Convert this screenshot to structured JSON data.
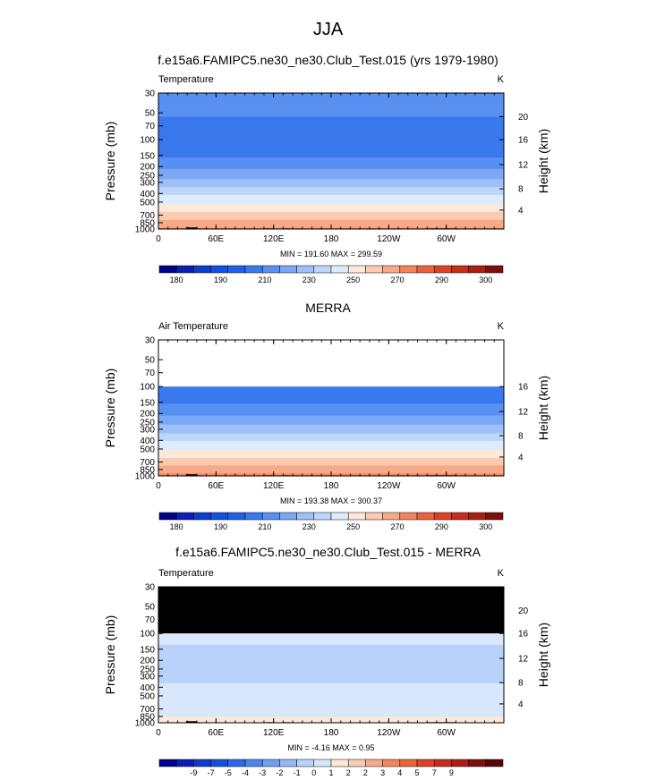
{
  "page": {
    "title": "JJA"
  },
  "chart_data": [
    {
      "type": "heatmap",
      "title": "f.e15a6.FAMIPC5.ne30_ne30.Club_Test.015 (yrs 1979-1980)",
      "left_string": "Temperature",
      "right_string": "K",
      "ylabel": "Pressure (mb)",
      "ylabel_right": "Height (km)",
      "x_ticks": [
        "0",
        "60E",
        "120E",
        "180",
        "120W",
        "60W"
      ],
      "y_ticks": [
        "30",
        "50",
        "70",
        "100",
        "150",
        "200",
        "250",
        "300",
        "400",
        "500",
        "700",
        "850",
        "1000"
      ],
      "height_ticks": [
        "20",
        "16",
        "12",
        "8",
        "4"
      ],
      "min_max": "MIN = 191.60  MAX = 299.59",
      "min": 191.6,
      "max": 299.59,
      "colorbar_labels": [
        "180",
        "190",
        "210",
        "230",
        "250",
        "270",
        "290",
        "300"
      ],
      "contour_levels": [
        175,
        180,
        185,
        190,
        200,
        210,
        220,
        230,
        240,
        250,
        260,
        270,
        280,
        290,
        295,
        300
      ],
      "profile": [
        {
          "p": 30,
          "value": 218
        },
        {
          "p": 50,
          "value": 212
        },
        {
          "p": 70,
          "value": 205
        },
        {
          "p": 100,
          "value": 200
        },
        {
          "p": 150,
          "value": 208
        },
        {
          "p": 200,
          "value": 217
        },
        {
          "p": 250,
          "value": 226
        },
        {
          "p": 300,
          "value": 234
        },
        {
          "p": 400,
          "value": 248
        },
        {
          "p": 500,
          "value": 258
        },
        {
          "p": 700,
          "value": 274
        },
        {
          "p": 850,
          "value": 284
        },
        {
          "p": 1000,
          "value": 292
        }
      ]
    },
    {
      "type": "heatmap",
      "title": "MERRA",
      "left_string": "Air Temperature",
      "right_string": "K",
      "ylabel": "Pressure (mb)",
      "ylabel_right": "Height (km)",
      "x_ticks": [
        "0",
        "60E",
        "120E",
        "180",
        "120W",
        "60W"
      ],
      "y_ticks": [
        "30",
        "50",
        "70",
        "100",
        "150",
        "200",
        "250",
        "300",
        "400",
        "500",
        "700",
        "850",
        "1000"
      ],
      "height_ticks": [
        "16",
        "12",
        "8",
        "4"
      ],
      "min_max": "MIN = 193.38  MAX = 300.37",
      "min": 193.38,
      "max": 300.37,
      "colorbar_labels": [
        "180",
        "190",
        "210",
        "230",
        "250",
        "270",
        "290",
        "300"
      ],
      "contour_levels": [
        175,
        180,
        185,
        190,
        200,
        210,
        220,
        230,
        240,
        250,
        260,
        270,
        280,
        290,
        295,
        300
      ],
      "profile": [
        {
          "p": 100,
          "value": 202
        },
        {
          "p": 150,
          "value": 209
        },
        {
          "p": 200,
          "value": 218
        },
        {
          "p": 250,
          "value": 227
        },
        {
          "p": 300,
          "value": 235
        },
        {
          "p": 400,
          "value": 249
        },
        {
          "p": 500,
          "value": 259
        },
        {
          "p": 700,
          "value": 275
        },
        {
          "p": 850,
          "value": 285
        },
        {
          "p": 1000,
          "value": 293
        }
      ]
    },
    {
      "type": "heatmap",
      "title": "f.e15a6.FAMIPC5.ne30_ne30.Club_Test.015 - MERRA",
      "left_string": "Temperature",
      "right_string": "K",
      "ylabel": "Pressure (mb)",
      "ylabel_right": "Height (km)",
      "x_ticks": [
        "0",
        "60E",
        "120E",
        "180",
        "120W",
        "60W"
      ],
      "y_ticks": [
        "30",
        "50",
        "70",
        "100",
        "150",
        "200",
        "250",
        "300",
        "400",
        "500",
        "700",
        "850",
        "1000"
      ],
      "height_ticks": [
        "20",
        "16",
        "12",
        "8",
        "4"
      ],
      "min_max": "MIN = -4.16  MAX =  0.95",
      "min": -4.16,
      "max": 0.95,
      "colorbar_labels": [
        "-9",
        "-7",
        "-5",
        "-4",
        "-3",
        "-2",
        "-1",
        "0",
        "1",
        "2",
        "2",
        "3",
        "4",
        "5",
        "7",
        "9"
      ],
      "contour_levels": [
        -10,
        -9,
        -8,
        -7,
        -6,
        -5,
        -4,
        -3,
        -2,
        -1,
        0,
        1,
        2,
        3,
        4,
        5,
        6,
        7,
        8,
        9,
        10
      ],
      "profile": [
        {
          "p": 100,
          "value": -1.5
        },
        {
          "p": 150,
          "value": -2.2
        },
        {
          "p": 200,
          "value": -2.6
        },
        {
          "p": 250,
          "value": -3.0
        },
        {
          "p": 300,
          "value": -2.4
        },
        {
          "p": 400,
          "value": -1.8
        },
        {
          "p": 500,
          "value": -1.5
        },
        {
          "p": 700,
          "value": -1.2
        },
        {
          "p": 850,
          "value": -1.0
        },
        {
          "p": 1000,
          "value": -0.8
        }
      ]
    }
  ],
  "colors": {
    "temperature_scale": [
      "#00008c",
      "#0a1fb0",
      "#0f3ccc",
      "#1450e0",
      "#2060e8",
      "#3a78ee",
      "#5990f2",
      "#7aa8f5",
      "#9cc0f7",
      "#bcd7fa",
      "#deebfd",
      "#fde8da",
      "#fbcbb0",
      "#f8a987",
      "#f2855f",
      "#ea633a",
      "#dd4224",
      "#c92d1a",
      "#a91f12",
      "#7e0f0a"
    ],
    "difference_scale": [
      "#00008c",
      "#0a1fb0",
      "#0f3ccc",
      "#1450e0",
      "#2a6ae8",
      "#4a86ef",
      "#6f9ff3",
      "#94b9f6",
      "#b9d2fa",
      "#d9e7fc",
      "#fde8da",
      "#fbcbb0",
      "#f8a987",
      "#f2855f",
      "#ea633a",
      "#dd4224",
      "#c92d1a",
      "#a91f12",
      "#7e0f0a",
      "#5a0505"
    ],
    "masked": "#000000"
  }
}
